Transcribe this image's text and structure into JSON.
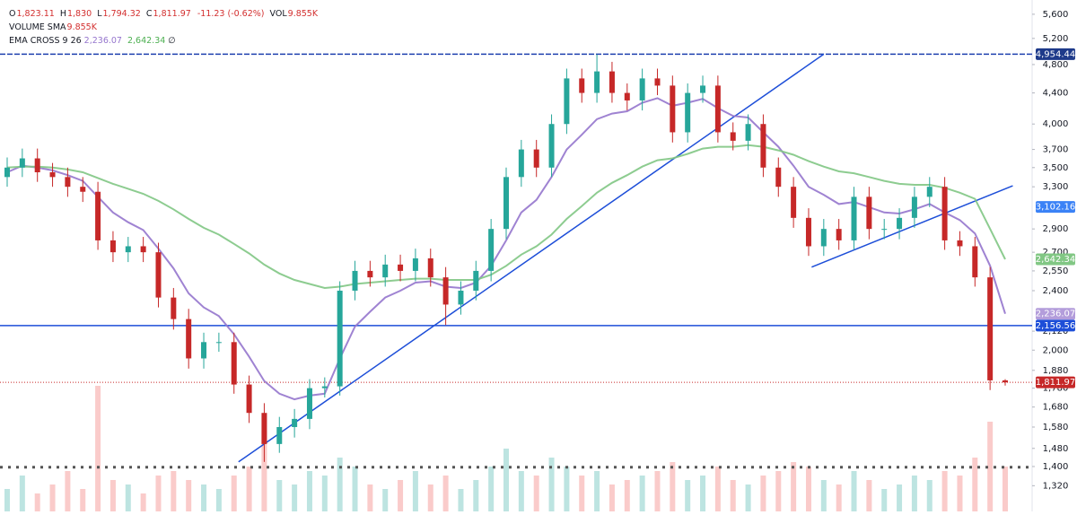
{
  "legend": {
    "ohlc": [
      {
        "key": "O",
        "value": "1,823.11"
      },
      {
        "key": "H",
        "value": "1,830"
      },
      {
        "key": "L",
        "value": "1,794.32"
      },
      {
        "key": "C",
        "value": "1,811.97"
      }
    ],
    "change": "-11.23 (-0.62%)",
    "vol_key": "VOL",
    "vol_value": "9.855K",
    "volume_sma": "VOLUME SMA",
    "volume_sma_value": "9.855K",
    "ema": "EMA CROSS 9 26",
    "ema_fast": "2,236.07",
    "ema_slow": "2,642.34",
    "ema_empty": "∅"
  },
  "chart_data": {
    "type": "candlestick",
    "log_scale": true,
    "ylim": [
      1220,
      5850
    ],
    "up_color": "#26a69a",
    "down_color": "#c62828",
    "yticks": [
      {
        "value": 5600,
        "label": "5,600"
      },
      {
        "value": 5200,
        "label": "5,200"
      },
      {
        "value": 4800,
        "label": "4,800"
      },
      {
        "value": 4400,
        "label": "4,400"
      },
      {
        "value": 4000,
        "label": "4,000"
      },
      {
        "value": 3700,
        "label": "3,700"
      },
      {
        "value": 3500,
        "label": "3,500"
      },
      {
        "value": 3300,
        "label": "3,300"
      },
      {
        "value": 2900,
        "label": "2,900"
      },
      {
        "value": 2700,
        "label": "2,700"
      },
      {
        "value": 2550,
        "label": "2,550"
      },
      {
        "value": 2400,
        "label": "2,400"
      },
      {
        "value": 2120,
        "label": "2,120"
      },
      {
        "value": 2000,
        "label": "2,000"
      },
      {
        "value": 1880,
        "label": "1,880"
      },
      {
        "value": 1780,
        "label": "1,780"
      },
      {
        "value": 1680,
        "label": "1,680"
      },
      {
        "value": 1580,
        "label": "1,580"
      },
      {
        "value": 1480,
        "label": "1,480"
      },
      {
        "value": 1400,
        "label": "1,400"
      },
      {
        "value": 1320,
        "label": "1,320"
      }
    ],
    "open": [
      3400,
      3500,
      3600,
      3450,
      3400,
      3300,
      3250,
      2800,
      2700,
      2750,
      2700,
      2350,
      2200,
      1950,
      2050,
      2050,
      1800,
      1650,
      1500,
      1580,
      1620,
      1780,
      1790,
      2400,
      2550,
      2500,
      2600,
      2550,
      2650,
      2500,
      2300,
      2400,
      2550,
      2900,
      3400,
      3700,
      3500,
      4000,
      4600,
      4400,
      4700,
      4400,
      4300,
      4600,
      4500,
      3900,
      4400,
      4500,
      3900,
      3800,
      4000,
      3500,
      3300,
      3000,
      2750,
      2900,
      2800,
      3200,
      2900,
      2900,
      3000,
      3200,
      3300,
      2800,
      2750,
      2500,
      1823.11
    ],
    "high": [
      3610,
      3710,
      3710,
      3550,
      3500,
      3400,
      3350,
      2880,
      2830,
      2830,
      2780,
      2420,
      2270,
      2110,
      2110,
      2110,
      1850,
      1700,
      1630,
      1670,
      1830,
      1840,
      2470,
      2630,
      2630,
      2680,
      2680,
      2730,
      2730,
      2580,
      2470,
      2630,
      2990,
      3500,
      3810,
      3810,
      4120,
      4740,
      4740,
      4950,
      4840,
      4530,
      4740,
      4740,
      4640,
      4530,
      4640,
      4640,
      4020,
      4120,
      4120,
      3610,
      3400,
      3090,
      2990,
      2990,
      3300,
      3300,
      2990,
      3090,
      3300,
      3400,
      3400,
      2880,
      2830,
      2580,
      1830
    ],
    "low": [
      3300,
      3400,
      3350,
      3300,
      3200,
      3150,
      2720,
      2620,
      2620,
      2620,
      2280,
      2130,
      1890,
      1890,
      1990,
      1750,
      1600,
      1420,
      1460,
      1530,
      1570,
      1730,
      1740,
      2330,
      2430,
      2430,
      2470,
      2470,
      2430,
      2160,
      2230,
      2330,
      2470,
      2810,
      3300,
      3400,
      3400,
      3880,
      4270,
      4270,
      4270,
      4170,
      4170,
      4370,
      3780,
      3780,
      4270,
      3780,
      3690,
      3690,
      3400,
      3200,
      2910,
      2670,
      2670,
      2720,
      2720,
      2810,
      2810,
      2810,
      2910,
      3100,
      2720,
      2670,
      2430,
      1770,
      1794.32
    ],
    "close": [
      3500,
      3600,
      3450,
      3400,
      3300,
      3250,
      2800,
      2700,
      2750,
      2700,
      2350,
      2200,
      1950,
      2050,
      2050,
      1800,
      1650,
      1500,
      1580,
      1620,
      1780,
      1790,
      2400,
      2550,
      2500,
      2600,
      2550,
      2650,
      2500,
      2300,
      2400,
      2550,
      2900,
      3400,
      3700,
      3500,
      4000,
      4600,
      4400,
      4700,
      4400,
      4300,
      4600,
      4500,
      3900,
      4400,
      4500,
      3900,
      3800,
      4000,
      3500,
      3300,
      3000,
      2750,
      2900,
      2800,
      3200,
      2900,
      2900,
      3000,
      3200,
      3300,
      2800,
      2750,
      2500,
      1823.2,
      1811.97
    ],
    "series": [
      {
        "name": "EMA 9",
        "color": "#9575cd",
        "values": [
          3450,
          3520,
          3500,
          3470,
          3420,
          3360,
          3200,
          3050,
          2960,
          2890,
          2730,
          2570,
          2380,
          2280,
          2220,
          2100,
          1960,
          1820,
          1750,
          1720,
          1740,
          1750,
          1950,
          2150,
          2250,
          2350,
          2400,
          2460,
          2470,
          2430,
          2420,
          2460,
          2590,
          2800,
          3050,
          3170,
          3400,
          3700,
          3870,
          4060,
          4130,
          4160,
          4270,
          4330,
          4230,
          4270,
          4320,
          4200,
          4100,
          4080,
          3900,
          3730,
          3520,
          3300,
          3220,
          3130,
          3150,
          3100,
          3050,
          3040,
          3080,
          3130,
          3050,
          2980,
          2860,
          2590,
          2236.07
        ]
      },
      {
        "name": "EMA 26",
        "color": "#81c784",
        "values": [
          3500,
          3510,
          3510,
          3500,
          3480,
          3450,
          3390,
          3330,
          3280,
          3230,
          3160,
          3080,
          2990,
          2910,
          2850,
          2770,
          2690,
          2600,
          2530,
          2480,
          2450,
          2420,
          2430,
          2450,
          2460,
          2470,
          2480,
          2490,
          2490,
          2480,
          2480,
          2480,
          2520,
          2590,
          2680,
          2750,
          2850,
          2990,
          3110,
          3240,
          3340,
          3420,
          3510,
          3580,
          3600,
          3650,
          3710,
          3730,
          3730,
          3750,
          3730,
          3690,
          3640,
          3570,
          3510,
          3460,
          3440,
          3400,
          3360,
          3330,
          3320,
          3320,
          3290,
          3240,
          3180,
          2900,
          2642.34
        ]
      }
    ],
    "volume": [
      5,
      8,
      4,
      6,
      9,
      5,
      28,
      7,
      6,
      4,
      8,
      9,
      7,
      6,
      5,
      8,
      10,
      18,
      7,
      6,
      9,
      8,
      12,
      10,
      6,
      5,
      7,
      9,
      6,
      8,
      5,
      7,
      10,
      14,
      9,
      8,
      12,
      10,
      8,
      9,
      6,
      7,
      8,
      9,
      11,
      7,
      8,
      10,
      7,
      6,
      8,
      9,
      11,
      10,
      7,
      6,
      9,
      7,
      5,
      6,
      8,
      7,
      9,
      8,
      12,
      20,
      10
    ],
    "volume_sma": 9.855,
    "hlines": [
      {
        "value": 4954.44,
        "color": "#1e40af"
      },
      {
        "value": 2156.56,
        "color": "#1d4ed8"
      }
    ],
    "trend_lines": [
      {
        "x": [
          15.3,
          54
        ],
        "y": [
          1420,
          4954.44
        ],
        "color": "#1d4ed8"
      },
      {
        "x": [
          53.2,
          66.5
        ],
        "y": [
          2580,
          3310
        ],
        "color": "#1d4ed8"
      }
    ],
    "price_labels": [
      {
        "value": 4954.44,
        "label": "4,954.44",
        "color": "#1e3a8a"
      },
      {
        "value": 3102.16,
        "label": "3,102.16",
        "color": "#3b82f6"
      },
      {
        "value": 2642.34,
        "label": "2,642.34",
        "color": "#81c784"
      },
      {
        "value": 2236.07,
        "label": "2,236.07",
        "color": "#b39ddb"
      },
      {
        "value": 2156.56,
        "label": "2,156.56",
        "color": "#1d4ed8"
      },
      {
        "value": 1811.97,
        "label": "1,811.97",
        "color": "#c62828"
      }
    ]
  }
}
